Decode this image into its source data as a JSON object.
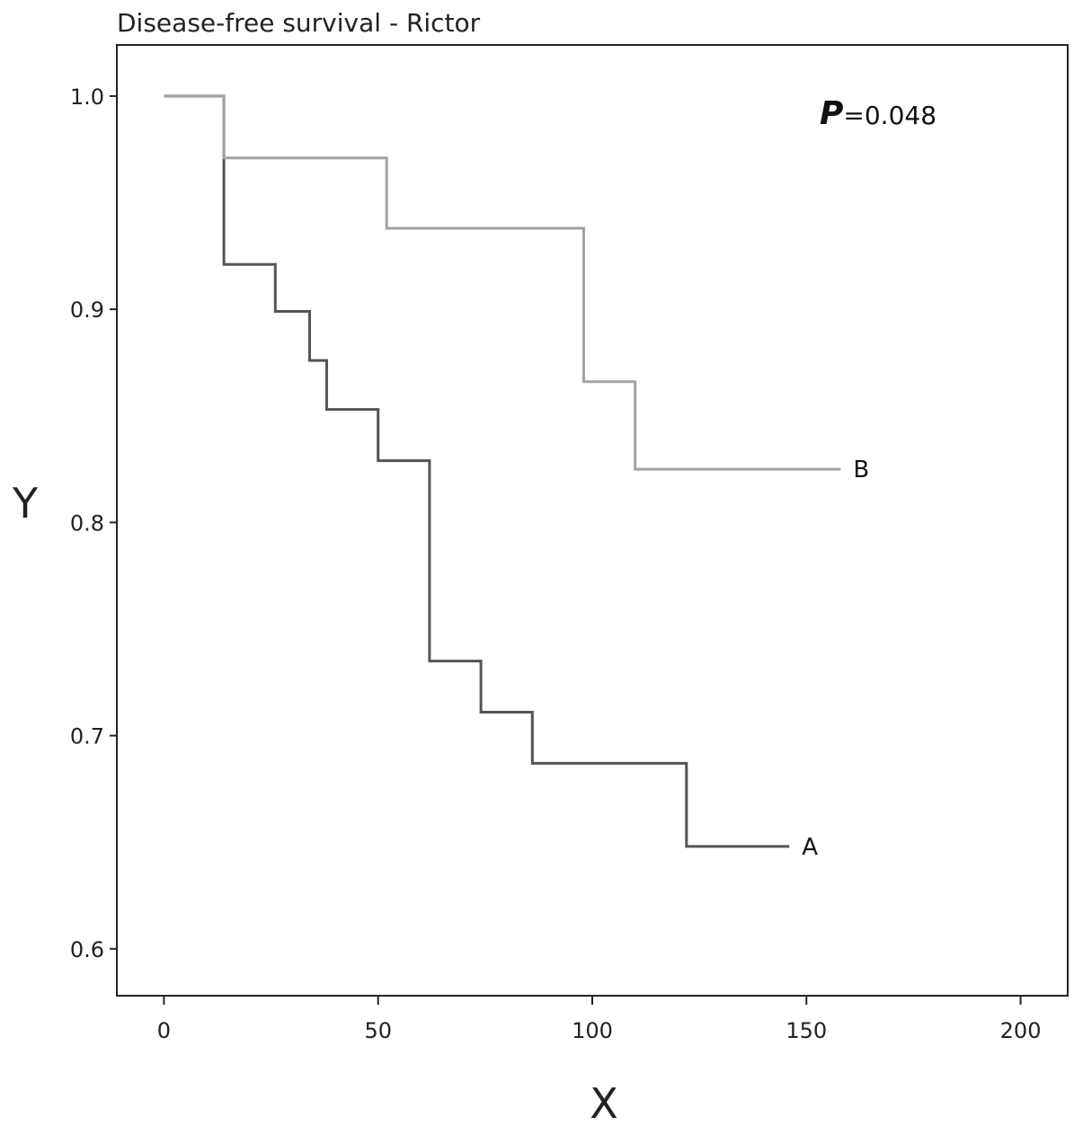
{
  "chart_data": {
    "type": "line",
    "title": "Disease-free survival - Rictor",
    "xlabel": "X",
    "ylabel": "Y",
    "xlim": [
      -11,
      211
    ],
    "ylim": [
      0.578,
      1.024
    ],
    "xticks": [
      0,
      50,
      100,
      150,
      200
    ],
    "xtick_labels": [
      "0",
      "50",
      "100",
      "150",
      "200"
    ],
    "yticks": [
      0.6,
      0.7,
      0.8,
      0.9,
      1.0
    ],
    "ytick_labels": [
      "0.6",
      "0.7",
      "0.8",
      "0.9",
      "1.0"
    ],
    "grid": false,
    "annotation": {
      "italic_part": "P",
      "rest": "=0.048"
    },
    "series": [
      {
        "name": "A",
        "color": "#555555",
        "x": [
          0,
          14,
          14,
          26,
          26,
          34,
          34,
          38,
          38,
          50,
          50,
          62,
          62,
          74,
          74,
          86,
          86,
          122,
          122,
          146
        ],
        "y": [
          1.0,
          1.0,
          0.921,
          0.921,
          0.899,
          0.899,
          0.876,
          0.876,
          0.853,
          0.853,
          0.829,
          0.829,
          0.735,
          0.735,
          0.711,
          0.711,
          0.687,
          0.687,
          0.648,
          0.648
        ]
      },
      {
        "name": "B",
        "color": "#a3a3a3",
        "x": [
          0,
          14,
          14,
          52,
          52,
          98,
          98,
          110,
          110,
          158
        ],
        "y": [
          1.0,
          1.0,
          0.971,
          0.971,
          0.938,
          0.938,
          0.866,
          0.866,
          0.825,
          0.825
        ]
      }
    ]
  }
}
